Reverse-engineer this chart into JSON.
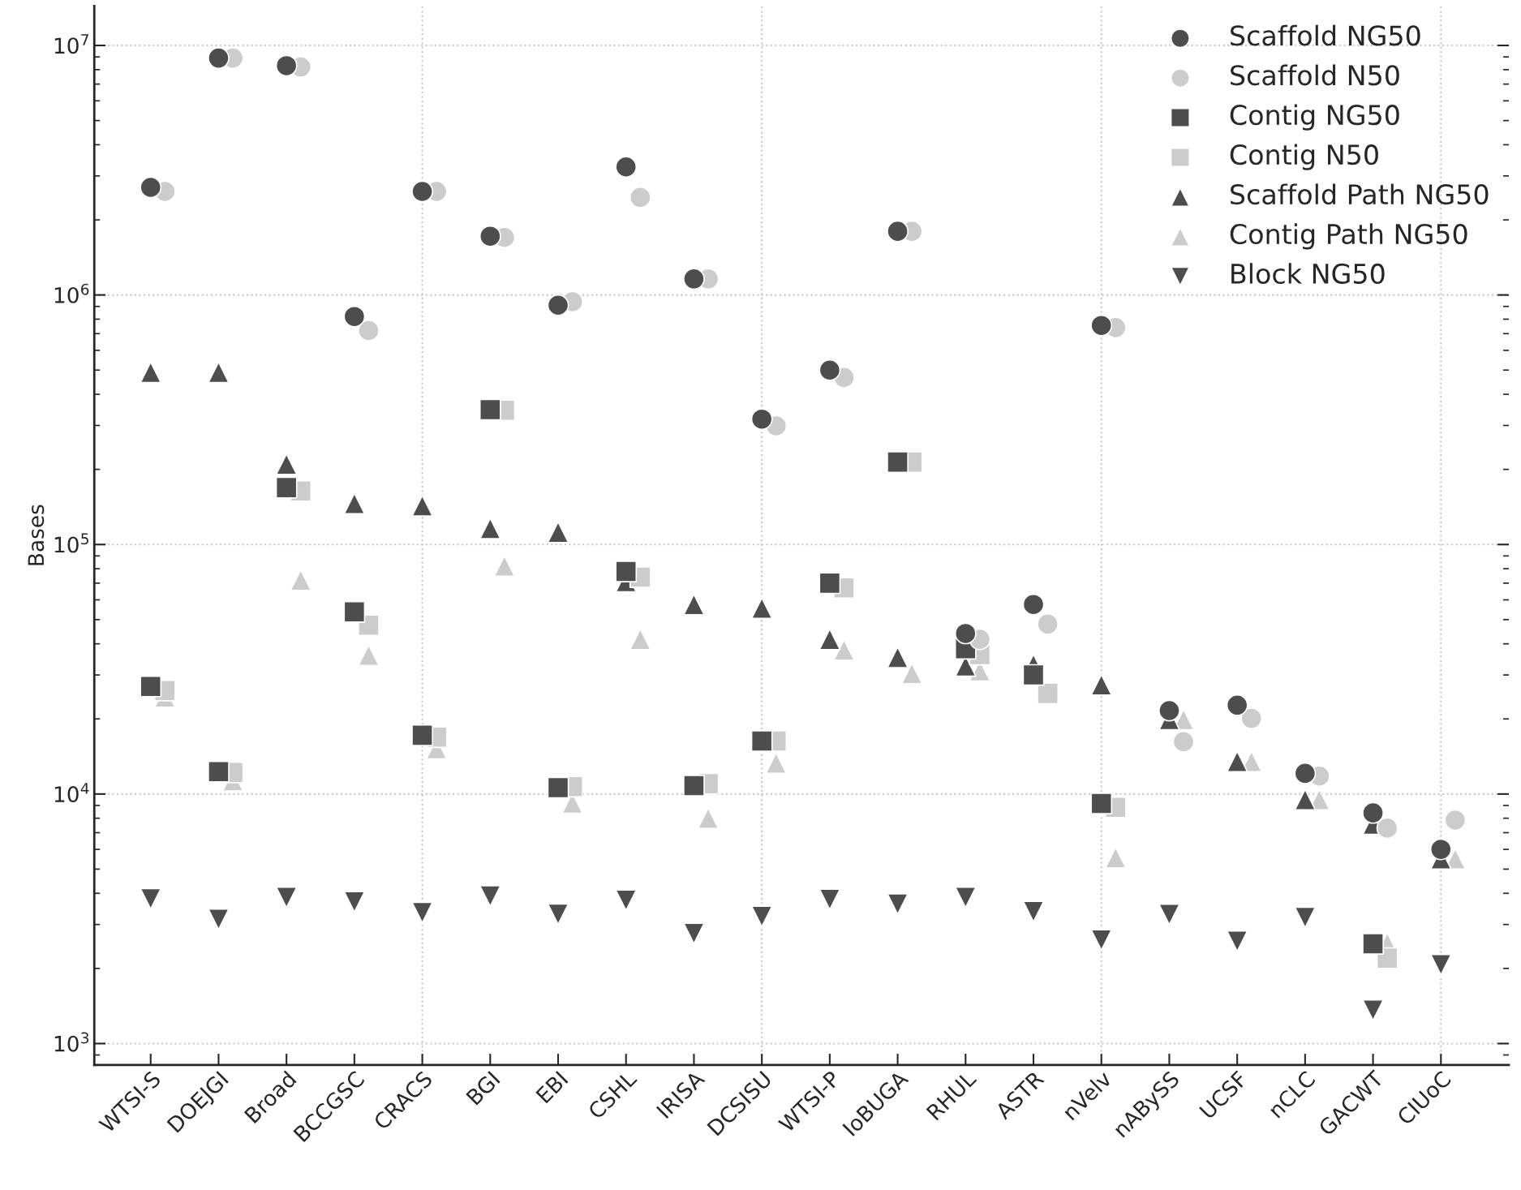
{
  "chart_data": {
    "type": "scatter",
    "ylabel": "Bases",
    "log": "y",
    "grid": "y",
    "legend": "top right",
    "categories": [
      "WTSI-S",
      "DOEJGI",
      "Broad",
      "BCCGSC",
      "CRACS",
      "BGI",
      "EBI",
      "CSHL",
      "IRISA",
      "DCSISU",
      "WTSI-P",
      "IoBUGA",
      "RHUL",
      "ASTR",
      "nVelv",
      "nABySS",
      "UCSF",
      "nCLC",
      "GACWT",
      "CIUoC"
    ],
    "ylim": [
      820,
      14400000
    ],
    "yticks": [
      {
        "value": 1000,
        "label": "10$^{3}$"
      },
      {
        "value": 10000,
        "label": "10$^{4}$"
      },
      {
        "value": 100000,
        "label": "10$^{5}$"
      },
      {
        "value": 1000000,
        "label": "10$^{6}$"
      },
      {
        "value": 10000000,
        "label": "10$^{7}$"
      }
    ],
    "ref_lines": [
      {
        "axis": "x",
        "value": "CRACS",
        "color": "#c8c8c8",
        "line_style": "dotted"
      },
      {
        "axis": "x",
        "value": "DCSISU",
        "color": "#c8c8c8",
        "line_style": "dotted"
      },
      {
        "axis": "x",
        "value": "nVelv",
        "color": "#c8c8c8",
        "line_style": "dotted"
      },
      {
        "axis": "x",
        "value": "CIUoC",
        "color": "#c8c8c8",
        "line_style": "dotted"
      }
    ],
    "series": [
      {
        "name": "Scaffold NG50",
        "color": "#4d4d4d",
        "marker": "circle",
        "values": [
          2700000,
          8900000,
          8300000,
          820000,
          2600000,
          1720000,
          910000,
          3260000,
          1160000,
          318000,
          500000,
          1800000,
          44000,
          57500,
          755000,
          21600,
          22700,
          12100,
          8400,
          6000
        ]
      },
      {
        "name": "Scaffold N50",
        "color": "#cccccc",
        "marker": "circle",
        "values": [
          2600000,
          8900000,
          8200000,
          720000,
          2600000,
          1700000,
          940000,
          2460000,
          1160000,
          299000,
          467000,
          1800000,
          41700,
          48000,
          740000,
          16200,
          20100,
          11800,
          7300,
          7860
        ]
      },
      {
        "name": "Contig NG50",
        "color": "#4d4d4d",
        "marker": "square",
        "values": [
          27000,
          12300,
          169000,
          53700,
          17200,
          347000,
          10600,
          78000,
          10800,
          16300,
          70000,
          214000,
          38200,
          30000,
          9170,
          null,
          null,
          null,
          2510,
          null
        ]
      },
      {
        "name": "Contig N50",
        "color": "#cccccc",
        "marker": "square",
        "values": [
          26000,
          12200,
          164000,
          47500,
          16900,
          345000,
          10700,
          74000,
          11000,
          16300,
          67000,
          214000,
          36200,
          25300,
          8850,
          null,
          null,
          null,
          2200,
          null
        ]
      },
      {
        "name": "Scaffold Path NG50",
        "color": "#4d4d4d",
        "marker": "triangle",
        "values": [
          490000,
          490000,
          210000,
          146000,
          143000,
          116000,
          112000,
          71000,
          57500,
          55600,
          41700,
          35300,
          32600,
          33000,
          27400,
          19900,
          13500,
          9500,
          7570,
          5500
        ]
      },
      {
        "name": "Contig Path NG50",
        "color": "#cccccc",
        "marker": "triangle",
        "values": [
          24500,
          11300,
          72000,
          36000,
          15200,
          82000,
          9200,
          41700,
          8000,
          13300,
          37800,
          30400,
          31200,
          null,
          5560,
          19900,
          13500,
          9500,
          2530,
          5500
        ]
      },
      {
        "name": "Block NG50",
        "color": "#4d4d4d",
        "marker": "triangle-down",
        "values": [
          3800,
          3150,
          3850,
          3700,
          3350,
          3900,
          3300,
          3750,
          2760,
          3230,
          3780,
          3620,
          3850,
          3380,
          2600,
          3290,
          2570,
          3200,
          1360,
          2070
        ]
      }
    ]
  }
}
